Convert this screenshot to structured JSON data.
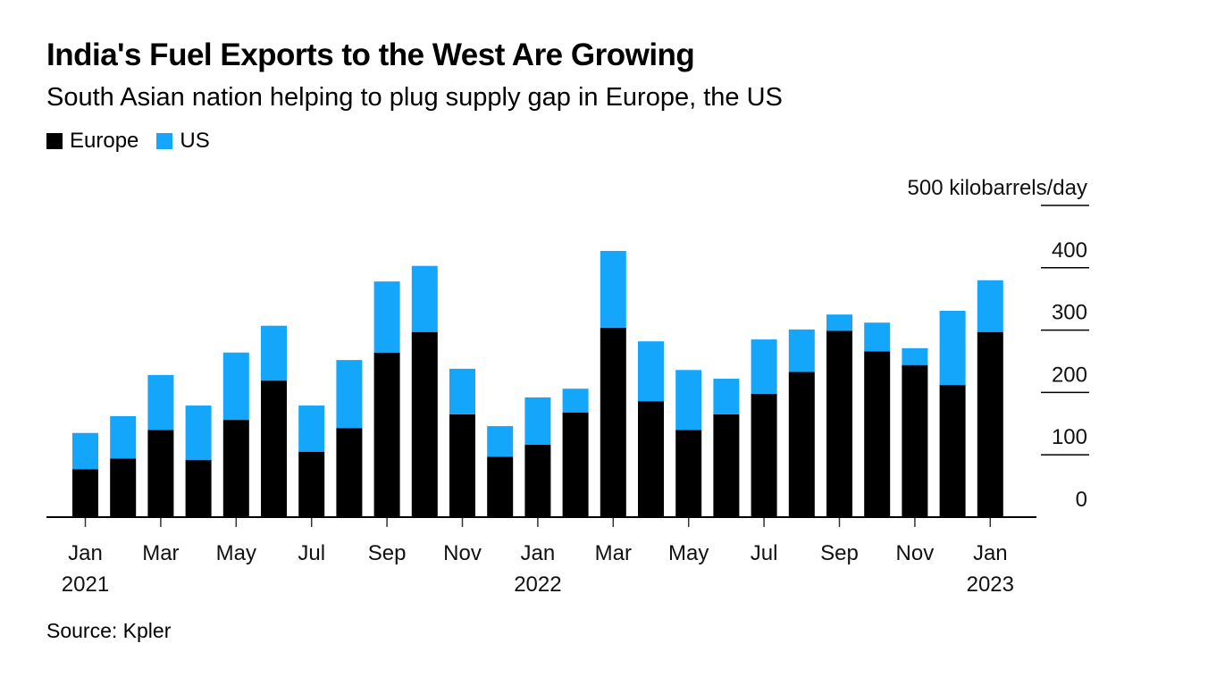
{
  "title": "India's Fuel Exports to the West Are Growing",
  "subtitle": "South Asian nation helping to plug supply gap in Europe, the US",
  "source": "Source: Kpler",
  "legend": [
    {
      "label": "Europe",
      "color": "#000000"
    },
    {
      "label": "US",
      "color": "#14a6fb"
    }
  ],
  "chart_data": {
    "type": "bar",
    "stacked": true,
    "title": "India's Fuel Exports to the West Are Growing",
    "subtitle": "South Asian nation helping to plug supply gap in Europe, the US",
    "unit_label": "500 kilobarrels/day",
    "ylabel": "kilobarrels/day",
    "xlabel": "",
    "ylim": [
      0,
      500
    ],
    "yticks": [
      0,
      100,
      200,
      300,
      400,
      500
    ],
    "ytick_labels": [
      "0",
      "100",
      "200",
      "300",
      "400",
      "500 kilobarrels/day"
    ],
    "grid": true,
    "legend_position": "top-left",
    "categories": [
      "Jan 2021",
      "Feb 2021",
      "Mar 2021",
      "Apr 2021",
      "May 2021",
      "Jun 2021",
      "Jul 2021",
      "Aug 2021",
      "Sep 2021",
      "Oct 2021",
      "Nov 2021",
      "Dec 2021",
      "Jan 2022",
      "Feb 2022",
      "Mar 2022",
      "Apr 2022",
      "May 2022",
      "Jun 2022",
      "Jul 2022",
      "Aug 2022",
      "Sep 2022",
      "Oct 2022",
      "Nov 2022",
      "Dec 2022",
      "Jan 2023"
    ],
    "xtick_labels": [
      {
        "index": 0,
        "month": "Jan",
        "year": "2021"
      },
      {
        "index": 2,
        "month": "Mar",
        "year": ""
      },
      {
        "index": 4,
        "month": "May",
        "year": ""
      },
      {
        "index": 6,
        "month": "Jul",
        "year": ""
      },
      {
        "index": 8,
        "month": "Sep",
        "year": ""
      },
      {
        "index": 10,
        "month": "Nov",
        "year": ""
      },
      {
        "index": 12,
        "month": "Jan",
        "year": "2022"
      },
      {
        "index": 14,
        "month": "Mar",
        "year": ""
      },
      {
        "index": 16,
        "month": "May",
        "year": ""
      },
      {
        "index": 18,
        "month": "Jul",
        "year": ""
      },
      {
        "index": 20,
        "month": "Sep",
        "year": ""
      },
      {
        "index": 22,
        "month": "Nov",
        "year": ""
      },
      {
        "index": 24,
        "month": "Jan",
        "year": "2023"
      }
    ],
    "series": [
      {
        "name": "Europe",
        "color": "#000000",
        "values": [
          77,
          94,
          140,
          92,
          156,
          219,
          105,
          143,
          264,
          297,
          165,
          97,
          116,
          168,
          304,
          186,
          140,
          165,
          198,
          233,
          299,
          266,
          244,
          212,
          297
        ]
      },
      {
        "name": "US",
        "color": "#14a6fb",
        "values": [
          58,
          68,
          88,
          87,
          108,
          88,
          74,
          109,
          114,
          106,
          73,
          49,
          76,
          38,
          123,
          96,
          96,
          57,
          87,
          68,
          26,
          46,
          27,
          119,
          83
        ]
      }
    ]
  }
}
